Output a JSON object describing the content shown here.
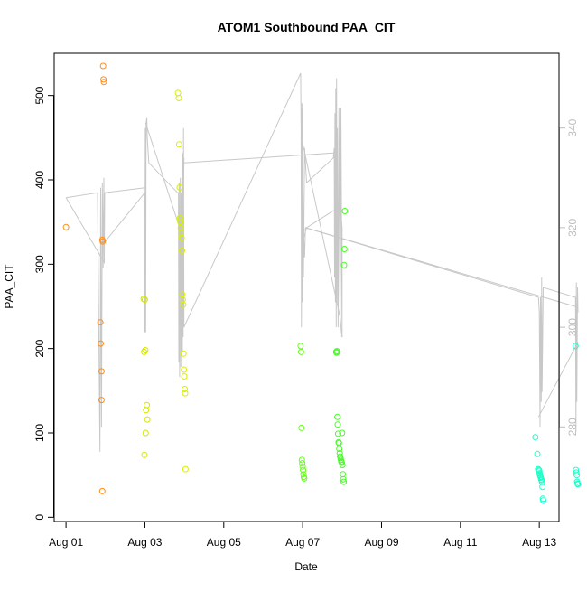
{
  "chart_data": {
    "type": "scatter",
    "title": "ATOM1 Southbound PAA_CIT",
    "xlabel": "Date",
    "ylabel": "PAA_CIT",
    "x_axis": {
      "unit": "date",
      "range_days": [
        -0.3,
        12.5
      ],
      "ticks": [
        {
          "day": 0,
          "label": "Aug 01"
        },
        {
          "day": 2,
          "label": "Aug 03"
        },
        {
          "day": 4,
          "label": "Aug 05"
        },
        {
          "day": 6,
          "label": "Aug 07"
        },
        {
          "day": 8,
          "label": "Aug 09"
        },
        {
          "day": 10,
          "label": "Aug 11"
        },
        {
          "day": 12,
          "label": "Aug 13"
        }
      ]
    },
    "y_axis": {
      "range": [
        -5,
        550
      ],
      "ticks": [
        0,
        100,
        200,
        300,
        400,
        500
      ]
    },
    "y2_axis": {
      "range": [
        261,
        355
      ],
      "ticks": [
        280,
        300,
        320,
        340
      ],
      "color": "#bdbdbd"
    },
    "grid": false,
    "legend": "none",
    "scatter_series": [
      {
        "color": "#ff8c1a",
        "x": [
          0.0,
          0.87,
          0.88,
          0.9,
          0.9,
          0.92,
          0.92,
          0.93,
          0.94,
          0.95,
          0.96
        ],
        "y": [
          344,
          231,
          206,
          173,
          139,
          31,
          329,
          327,
          535,
          519,
          516
        ]
      },
      {
        "color": "#d4e600",
        "x": [
          1.97,
          1.98,
          1.99,
          2.02,
          2.03,
          2.05,
          2.06,
          2.0,
          2.01
        ],
        "y": [
          259,
          196,
          74,
          100,
          127,
          133,
          116,
          258,
          198
        ]
      },
      {
        "color": "#d9f000",
        "x": [
          2.84,
          2.86,
          2.87,
          2.88,
          2.89,
          2.9,
          2.91,
          2.92,
          2.93,
          2.94,
          2.95,
          2.96,
          2.97,
          2.98,
          2.99,
          3.0,
          3.01,
          3.02,
          3.03
        ],
        "y": [
          503,
          497,
          442,
          391,
          355,
          350,
          343,
          337,
          331,
          316,
          264,
          258,
          252,
          194,
          175,
          167,
          152,
          147,
          57
        ]
      },
      {
        "color": "#66ff1a",
        "x": [
          5.95,
          5.96,
          5.97,
          5.98,
          5.99,
          6.0,
          6.01,
          6.02,
          6.03,
          6.04
        ],
        "y": [
          203,
          196,
          106,
          68,
          64,
          60,
          56,
          51,
          48,
          46
        ]
      },
      {
        "color": "#44ff22",
        "x": [
          6.85,
          6.86,
          6.87,
          6.88,
          6.89,
          6.9,
          6.91,
          6.92,
          6.93,
          6.94,
          6.95,
          6.96,
          6.97,
          6.98,
          6.99,
          7.0,
          7.01,
          7.02,
          7.03,
          7.04,
          7.05,
          7.06,
          7.07
        ],
        "y": [
          196,
          195,
          197,
          119,
          110,
          99,
          89,
          88,
          81,
          76,
          72,
          70,
          68,
          66,
          65,
          100,
          62,
          51,
          45,
          42,
          299,
          318,
          363
        ]
      },
      {
        "color": "#1affc6",
        "x": [
          11.9,
          11.95,
          11.97,
          11.99,
          12.0,
          12.01,
          12.02,
          12.03,
          12.04,
          12.05,
          12.06,
          12.07,
          12.08,
          12.09,
          12.1
        ],
        "y": [
          95,
          75,
          57,
          56,
          55,
          52,
          50,
          48,
          47,
          45,
          44,
          42,
          36,
          22,
          20
        ]
      },
      {
        "color": "#1affc6",
        "x": [
          12.92,
          12.93,
          12.94,
          12.95,
          12.96,
          12.97,
          12.98
        ],
        "y": [
          203,
          56,
          53,
          50,
          42,
          40,
          39
        ]
      }
    ],
    "secondary_line": {
      "color": "#c8c8c8",
      "axis": "right",
      "points": [
        [
          0.0,
          326
        ],
        [
          0.8,
          327
        ],
        [
          0.86,
          275
        ],
        [
          0.88,
          328
        ],
        [
          0.9,
          280
        ],
        [
          0.92,
          329
        ],
        [
          0.94,
          312
        ],
        [
          0.96,
          330
        ],
        [
          0.97,
          317
        ],
        [
          2.0,
          327
        ],
        [
          2.0,
          299
        ],
        [
          2.01,
          340
        ],
        [
          2.02,
          299
        ],
        [
          2.03,
          341
        ],
        [
          2.05,
          342
        ],
        [
          2.06,
          338
        ],
        [
          2.1,
          333
        ],
        [
          2.83,
          327
        ],
        [
          2.85,
          327
        ],
        [
          2.86,
          293
        ],
        [
          2.87,
          329
        ],
        [
          2.88,
          290
        ],
        [
          2.9,
          330
        ],
        [
          2.91,
          292
        ],
        [
          2.92,
          327
        ],
        [
          2.93,
          295
        ],
        [
          2.94,
          330
        ],
        [
          2.95,
          295
        ],
        [
          2.96,
          335
        ],
        [
          2.97,
          298
        ],
        [
          2.98,
          340
        ],
        [
          2.99,
          300
        ],
        [
          5.95,
          351
        ],
        [
          5.96,
          340
        ],
        [
          5.97,
          300
        ],
        [
          5.98,
          345
        ],
        [
          5.99,
          305
        ],
        [
          6.0,
          344
        ],
        [
          6.02,
          310
        ],
        [
          6.05,
          336
        ],
        [
          6.1,
          329
        ],
        [
          6.78,
          334
        ],
        [
          6.8,
          336
        ],
        [
          6.81,
          310
        ],
        [
          6.82,
          343
        ],
        [
          6.83,
          305
        ],
        [
          6.84,
          348
        ],
        [
          6.85,
          300
        ],
        [
          6.86,
          350
        ],
        [
          6.87,
          305
        ],
        [
          6.88,
          340
        ],
        [
          6.9,
          300
        ],
        [
          6.92,
          344
        ],
        [
          6.95,
          298
        ],
        [
          6.97,
          344
        ],
        [
          7.0,
          298
        ],
        [
          7.0,
          320
        ],
        [
          6.95,
          325
        ],
        [
          6.9,
          324
        ],
        [
          6.1,
          320
        ],
        [
          6.03,
          318
        ],
        [
          6.05,
          314
        ],
        [
          6.07,
          320
        ],
        [
          11.98,
          306
        ],
        [
          12.0,
          303
        ],
        [
          12.02,
          280
        ],
        [
          12.03,
          306
        ],
        [
          12.05,
          285
        ],
        [
          12.06,
          310
        ],
        [
          12.07,
          287
        ],
        [
          12.1,
          308
        ],
        [
          12.92,
          306
        ],
        [
          12.93,
          279
        ],
        [
          12.94,
          309
        ],
        [
          12.95,
          285
        ],
        [
          12.97,
          308
        ],
        [
          12.98,
          303
        ]
      ]
    },
    "secondary_connectors": [
      [
        [
          0.0,
          326
        ],
        [
          0.97,
          313
        ],
        [
          0.98,
          327
        ]
      ],
      [
        [
          0.98,
          327
        ],
        [
          2.0,
          328
        ]
      ],
      [
        [
          2.02,
          341
        ],
        [
          2.96,
          318
        ],
        [
          2.99,
          334
        ]
      ],
      [
        [
          2.98,
          333
        ],
        [
          6.78,
          335
        ]
      ],
      [
        [
          6.0,
          337
        ],
        [
          6.95,
          302
        ],
        [
          7.0,
          298
        ]
      ],
      [
        [
          6.07,
          320
        ],
        [
          12.98,
          304
        ]
      ],
      [
        [
          11.98,
          282
        ],
        [
          12.98,
          297
        ]
      ]
    ]
  }
}
